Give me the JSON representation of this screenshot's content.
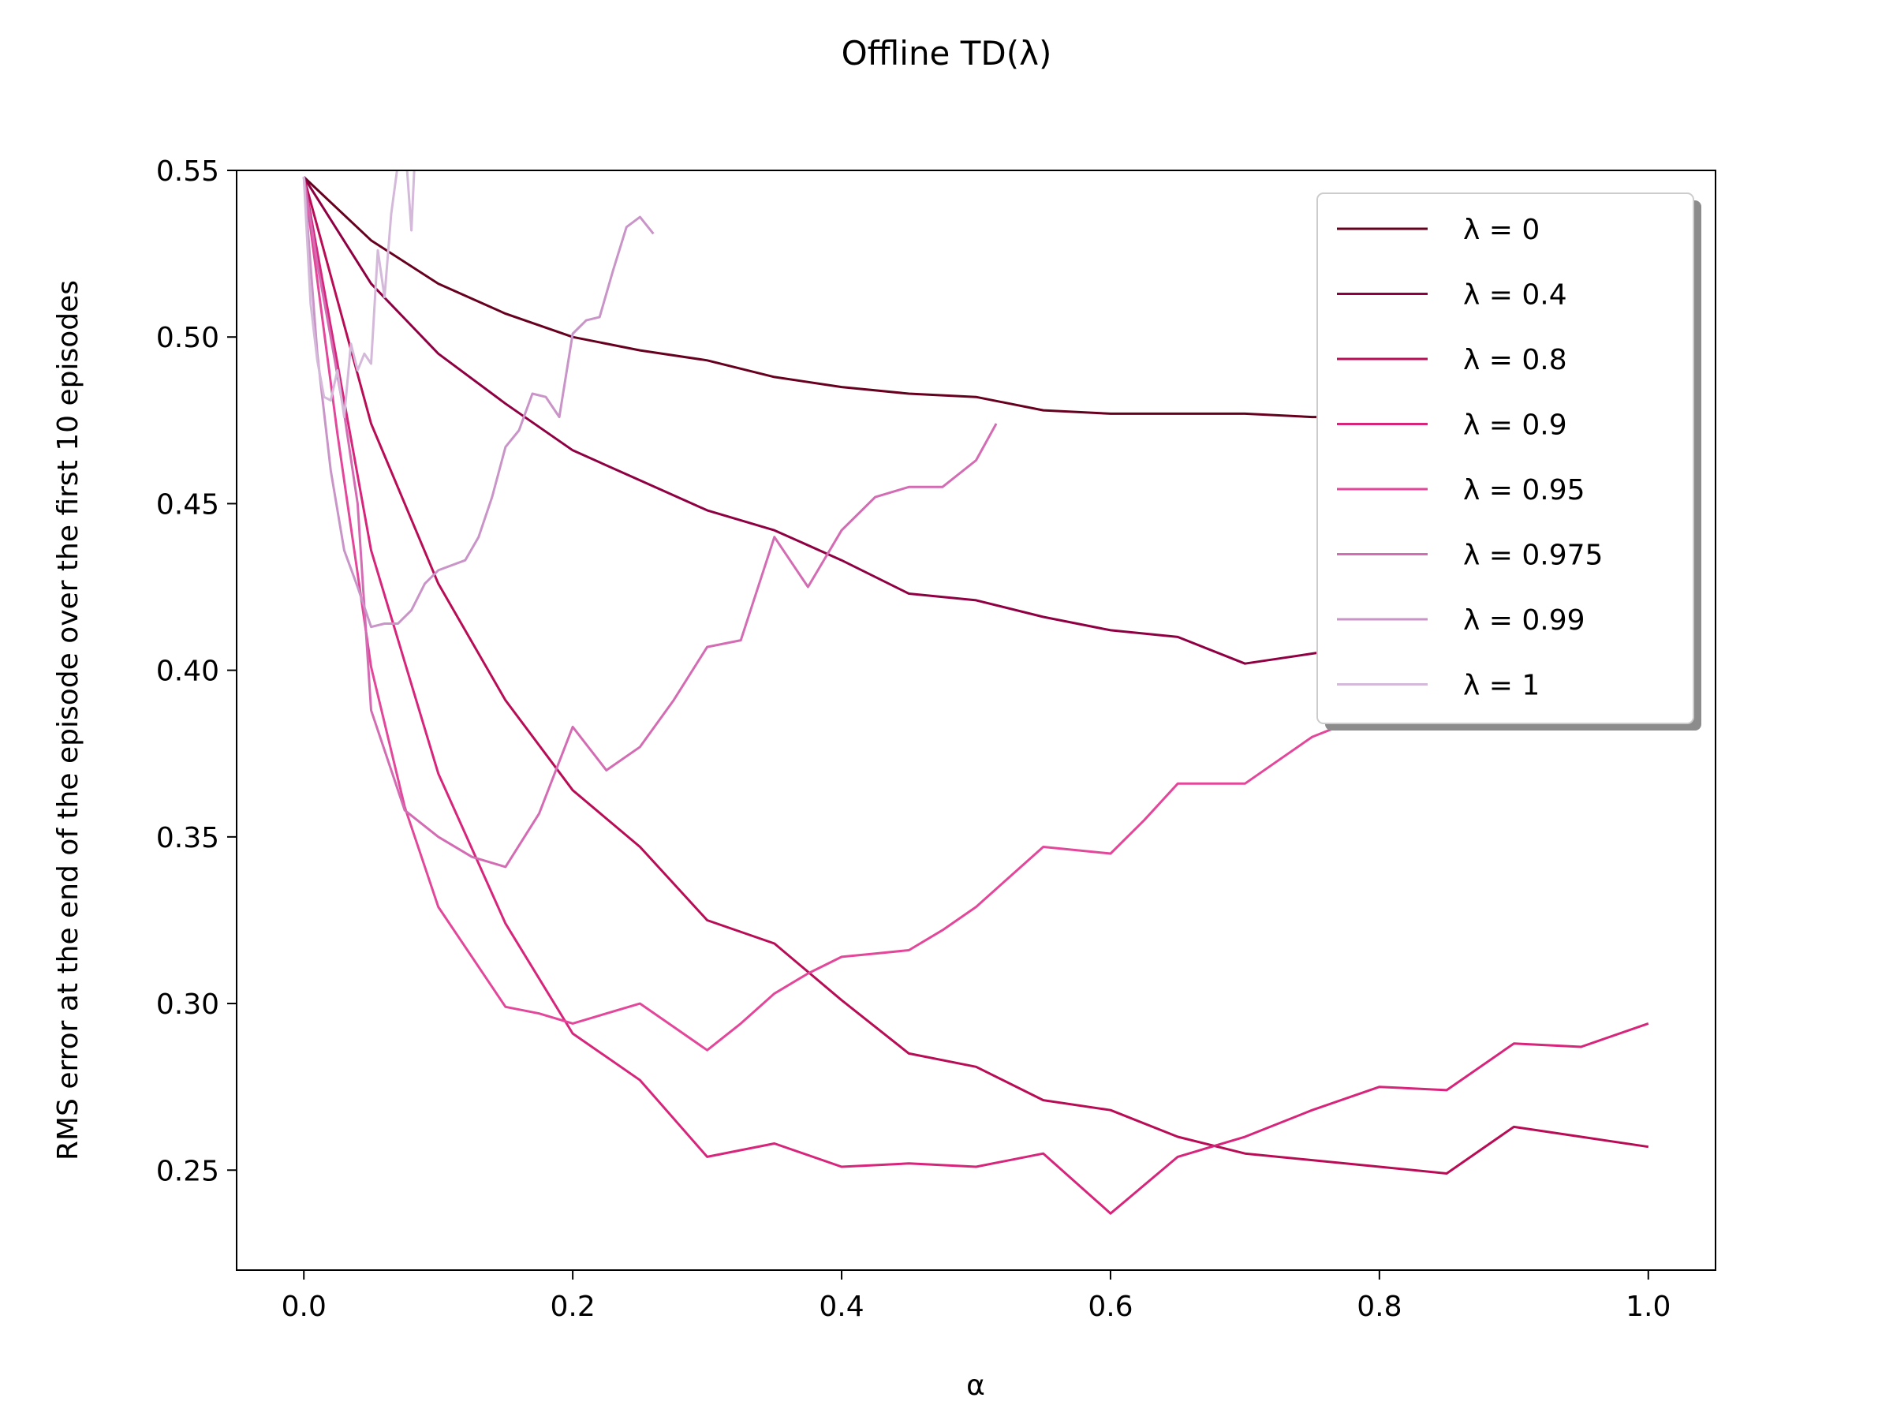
{
  "chart_data": {
    "type": "line",
    "title": "Offline TD(λ)",
    "xlabel": "α",
    "ylabel": "RMS error at the end of the episode over the first 10 episodes",
    "xlim": [
      -0.05,
      1.05
    ],
    "ylim": [
      0.22,
      0.55
    ],
    "xticks": [
      0.0,
      0.2,
      0.4,
      0.6,
      0.8,
      1.0
    ],
    "xtick_labels": [
      "0.0",
      "0.2",
      "0.4",
      "0.6",
      "0.8",
      "1.0"
    ],
    "yticks": [
      0.25,
      0.3,
      0.35,
      0.4,
      0.45,
      0.5,
      0.55
    ],
    "ytick_labels": [
      "0.25",
      "0.30",
      "0.35",
      "0.40",
      "0.45",
      "0.50",
      "0.55"
    ],
    "grid": false,
    "legend_position": "top-right",
    "series": [
      {
        "name": "λ = 0",
        "color": "#67001f",
        "x": [
          0,
          0.05,
          0.1,
          0.15,
          0.2,
          0.25,
          0.3,
          0.35,
          0.4,
          0.45,
          0.5,
          0.55,
          0.6,
          0.65,
          0.7,
          0.75,
          0.8,
          0.85,
          0.9,
          0.95,
          1.0
        ],
        "y": [
          0.548,
          0.529,
          0.516,
          0.507,
          0.5,
          0.496,
          0.493,
          0.488,
          0.485,
          0.483,
          0.482,
          0.478,
          0.477,
          0.477,
          0.477,
          0.476,
          0.476,
          0.476,
          0.476,
          0.476,
          0.476
        ]
      },
      {
        "name": "λ = 0.4",
        "color": "#8f0042",
        "x": [
          0,
          0.05,
          0.1,
          0.15,
          0.2,
          0.25,
          0.3,
          0.35,
          0.4,
          0.45,
          0.5,
          0.55,
          0.6,
          0.65,
          0.7,
          0.75,
          0.8,
          0.85,
          0.9,
          0.95,
          1.0
        ],
        "y": [
          0.548,
          0.516,
          0.495,
          0.48,
          0.466,
          0.457,
          0.448,
          0.442,
          0.433,
          0.423,
          0.421,
          0.416,
          0.412,
          0.41,
          0.402,
          0.405,
          0.408,
          0.409,
          0.41,
          0.411,
          0.412
        ]
      },
      {
        "name": "λ = 0.8",
        "color": "#b80d55",
        "x": [
          0,
          0.05,
          0.1,
          0.15,
          0.2,
          0.25,
          0.3,
          0.35,
          0.4,
          0.45,
          0.5,
          0.55,
          0.6,
          0.65,
          0.7,
          0.75,
          0.8,
          0.85,
          0.9,
          0.95,
          1.0
        ],
        "y": [
          0.548,
          0.474,
          0.426,
          0.391,
          0.364,
          0.347,
          0.325,
          0.318,
          0.301,
          0.285,
          0.281,
          0.271,
          0.268,
          0.26,
          0.255,
          0.253,
          0.251,
          0.249,
          0.263,
          0.26,
          0.257
        ]
      },
      {
        "name": "λ = 0.9",
        "color": "#d6257a",
        "x": [
          0,
          0.05,
          0.1,
          0.15,
          0.2,
          0.25,
          0.3,
          0.35,
          0.4,
          0.45,
          0.5,
          0.55,
          0.6,
          0.65,
          0.7,
          0.75,
          0.8,
          0.85,
          0.9,
          0.95,
          1.0
        ],
        "y": [
          0.548,
          0.436,
          0.369,
          0.324,
          0.291,
          0.277,
          0.254,
          0.258,
          0.251,
          0.252,
          0.251,
          0.255,
          0.237,
          0.254,
          0.26,
          0.268,
          0.275,
          0.274,
          0.288,
          0.287,
          0.294
        ]
      },
      {
        "name": "λ = 0.95",
        "color": "#e3479a",
        "x": [
          0,
          0.025,
          0.05,
          0.075,
          0.1,
          0.125,
          0.15,
          0.175,
          0.2,
          0.225,
          0.25,
          0.275,
          0.3,
          0.325,
          0.35,
          0.375,
          0.4,
          0.425,
          0.45,
          0.475,
          0.5,
          0.525,
          0.55,
          0.575,
          0.6,
          0.625,
          0.65,
          0.675,
          0.7,
          0.725,
          0.75,
          0.775,
          0.8
        ],
        "y": [
          0.548,
          0.471,
          0.401,
          0.359,
          0.329,
          0.314,
          0.299,
          0.297,
          0.294,
          0.297,
          0.3,
          0.293,
          0.286,
          0.294,
          0.303,
          0.309,
          0.314,
          0.315,
          0.316,
          0.322,
          0.329,
          0.338,
          0.347,
          0.346,
          0.345,
          0.355,
          0.366,
          0.366,
          0.366,
          0.373,
          0.38,
          0.384,
          0.388
        ]
      },
      {
        "name": "λ = 0.975",
        "color": "#d36cb3",
        "x": [
          0,
          0.01,
          0.02,
          0.03,
          0.04,
          0.05,
          0.075,
          0.1,
          0.125,
          0.15,
          0.175,
          0.2,
          0.225,
          0.25,
          0.275,
          0.3,
          0.325,
          0.35,
          0.375,
          0.4,
          0.425,
          0.45,
          0.475,
          0.5,
          0.515
        ],
        "y": [
          0.548,
          0.522,
          0.5,
          0.477,
          0.45,
          0.388,
          0.358,
          0.35,
          0.344,
          0.341,
          0.357,
          0.383,
          0.37,
          0.377,
          0.391,
          0.407,
          0.409,
          0.44,
          0.425,
          0.442,
          0.452,
          0.455,
          0.455,
          0.463,
          0.474
        ]
      },
      {
        "name": "λ = 0.99",
        "color": "#c994c7",
        "x": [
          0,
          0.01,
          0.02,
          0.03,
          0.04,
          0.05,
          0.06,
          0.07,
          0.08,
          0.09,
          0.1,
          0.12,
          0.13,
          0.14,
          0.15,
          0.16,
          0.17,
          0.18,
          0.19,
          0.2,
          0.21,
          0.22,
          0.23,
          0.24,
          0.25,
          0.26
        ],
        "y": [
          0.548,
          0.495,
          0.46,
          0.436,
          0.425,
          0.413,
          0.414,
          0.414,
          0.418,
          0.426,
          0.43,
          0.433,
          0.44,
          0.452,
          0.467,
          0.472,
          0.483,
          0.482,
          0.476,
          0.501,
          0.505,
          0.506,
          0.52,
          0.533,
          0.536,
          0.531
        ]
      },
      {
        "name": "λ = 1",
        "color": "#d4b9da",
        "x": [
          0,
          0.005,
          0.01,
          0.015,
          0.02,
          0.025,
          0.03,
          0.035,
          0.04,
          0.045,
          0.05,
          0.055,
          0.06,
          0.065,
          0.07,
          0.075,
          0.08,
          0.085,
          0.09
        ],
        "y": [
          0.548,
          0.51,
          0.493,
          0.482,
          0.481,
          0.49,
          0.476,
          0.498,
          0.49,
          0.495,
          0.492,
          0.526,
          0.512,
          0.537,
          0.552,
          0.56,
          0.532,
          0.575,
          0.595
        ]
      }
    ]
  }
}
